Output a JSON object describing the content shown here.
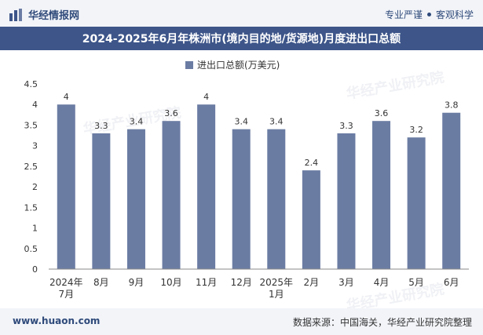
{
  "header": {
    "brand": "华经情报网",
    "tags": [
      "专业严谨",
      "客观科学"
    ]
  },
  "title": "2024-2025年6月年株洲市(境内目的地/货源地)月度进出口总额",
  "watermarks": [
    "华经产业研究院",
    "华经产业研究院",
    "华经产业研究院"
  ],
  "footer": {
    "url": "www.huaon.com",
    "source": "数据来源：中国海关，华经产业研究院整理"
  },
  "colors": {
    "bar": "#6b7ca3",
    "title_bg": "#3d5589",
    "axis": "#333333"
  },
  "chart_data": {
    "type": "bar",
    "categories": [
      [
        "2024年",
        "7月"
      ],
      [
        "8月"
      ],
      [
        "9月"
      ],
      [
        "10月"
      ],
      [
        "11月"
      ],
      [
        "12月"
      ],
      [
        "2025年",
        "1月"
      ],
      [
        "2月"
      ],
      [
        "3月"
      ],
      [
        "4月"
      ],
      [
        "5月"
      ],
      [
        "6月"
      ]
    ],
    "series": [
      {
        "name": "进出口总额(万美元)",
        "values": [
          4,
          3.3,
          3.4,
          3.6,
          4,
          3.4,
          3.4,
          2.4,
          3.3,
          3.6,
          3.2,
          3.8
        ]
      }
    ],
    "value_labels": [
      "4",
      "3.3",
      "3.4",
      "3.6",
      "4",
      "3.4",
      "3.4",
      "2.4",
      "3.3",
      "3.6",
      "3.2",
      "3.8"
    ],
    "yticks": [
      "0",
      "0.5",
      "1",
      "1.5",
      "2",
      "2.5",
      "3",
      "3.5",
      "4",
      "4.5"
    ],
    "ylim": [
      0,
      4.5
    ],
    "legend_position": "top-center",
    "grid": false
  }
}
